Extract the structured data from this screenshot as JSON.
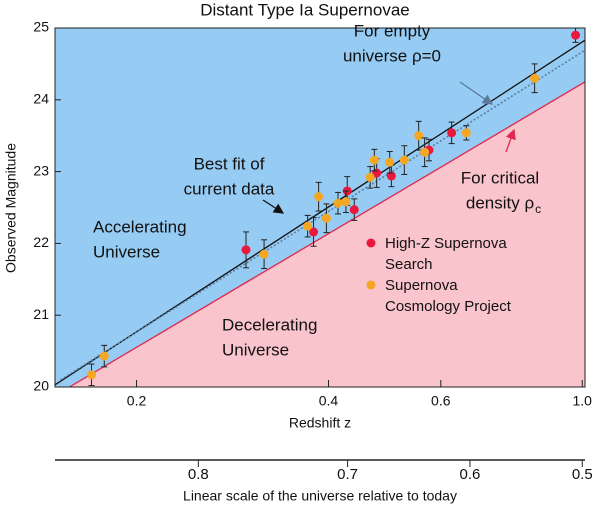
{
  "chart_data": {
    "type": "scatter",
    "title": "Distant Type Ia Supernovae",
    "x_label": "Redshift z",
    "y_label": "Observed Magnitude",
    "xscale": "log",
    "xlim": [
      0.149,
      1.01
    ],
    "xticks": [
      0.2,
      0.4,
      0.6,
      {
        "value": 1,
        "label": "1.0"
      }
    ],
    "ylim": [
      20,
      25
    ],
    "yticks": [
      20,
      21,
      22,
      23,
      24,
      25
    ],
    "series": [
      {
        "name": "High-Z Supernova Search",
        "color": "#e8193c",
        "x": [
          0.297,
          0.379,
          0.428,
          0.439,
          0.476,
          0.502,
          0.575,
          0.624,
          0.976
        ],
        "values": [
          21.91,
          22.16,
          22.73,
          22.47,
          22.98,
          22.94,
          23.3,
          23.54,
          24.9
        ],
        "errors": [
          0.25,
          0.2,
          0.2,
          0.15,
          0.2,
          0.15,
          0.15,
          0.15,
          0.1
        ]
      },
      {
        "name": "Supernova Cosmology Project",
        "color": "#f5a623",
        "x": [
          0.17,
          0.178,
          0.317,
          0.371,
          0.386,
          0.397,
          0.414,
          0.426,
          0.465,
          0.472,
          0.499,
          0.526,
          0.554,
          0.566,
          0.658,
          0.842
        ],
        "values": [
          20.17,
          20.43,
          21.85,
          22.24,
          22.65,
          22.35,
          22.56,
          22.58,
          22.92,
          23.16,
          23.13,
          23.16,
          23.5,
          23.27,
          23.54,
          24.3
        ],
        "errors": [
          0.15,
          0.15,
          0.2,
          0.15,
          0.2,
          0.2,
          0.15,
          0.15,
          0.15,
          0.15,
          0.15,
          0.2,
          0.2,
          0.2,
          0.1,
          0.2
        ]
      }
    ],
    "lines": [
      {
        "x": [
          0.149,
          1.01
        ],
        "values": [
          20.03,
          24.83
        ],
        "color": "#111111",
        "style": "solid"
      },
      {
        "x": [
          0.152,
          1.01
        ],
        "values": [
          20.1,
          24.69
        ],
        "color": "#5a7fa3",
        "style": "dotted"
      },
      {
        "x": [
          0.157,
          1.01
        ],
        "values": [
          20.0,
          24.25
        ],
        "color": "#e0284e",
        "style": "solid"
      }
    ],
    "fill_colors": {
      "above": "#96cbf3",
      "below": "#f9c4cc"
    },
    "annotations": [
      {
        "lines": [
          "For empty",
          "universe ρ=0"
        ],
        "color": "#5a7a99"
      },
      {
        "lines": [
          "Best fit of",
          "current data"
        ],
        "color": "#111111"
      },
      {
        "lines": [
          "For critical",
          "density ρ"
        ],
        "subscript": "c",
        "color": "#e0284e"
      },
      {
        "lines": [
          "Accelerating",
          "Universe"
        ],
        "color": "#2424c8"
      },
      {
        "lines": [
          "Decelerating",
          "Universe"
        ],
        "color": "#e0284e"
      }
    ],
    "secondary_axis": {
      "label": "Linear scale of the universe relative to today",
      "ticks": [
        0.8,
        0.7,
        0.6,
        0.5
      ]
    }
  }
}
